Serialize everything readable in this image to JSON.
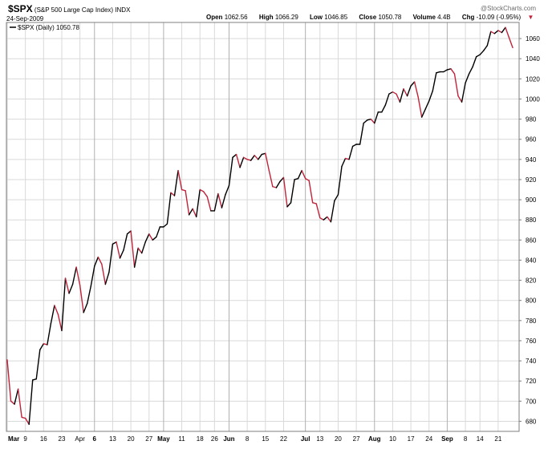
{
  "header": {
    "symbol": "$SPX",
    "name": "(S&P 500 Large Cap Index)",
    "exchange": "INDX",
    "date": "24-Sep-2009",
    "watermark": "@StockCharts.com",
    "quote": {
      "open_label": "Open",
      "open": "1062.56",
      "high_label": "High",
      "high": "1066.29",
      "low_label": "Low",
      "low": "1046.85",
      "close_label": "Close",
      "close": "1050.78",
      "volume_label": "Volume",
      "volume": "4.4B",
      "chg_label": "Chg",
      "chg": "-10.09 (-0.95%)",
      "chg_icon": "down-triangle-icon"
    }
  },
  "legend": {
    "text": "$SPX (Daily) 1050.78"
  },
  "colors": {
    "up": "#000000",
    "down": "#c0233a",
    "grid": "#d9d9d9",
    "month_line": "#b0b0b0"
  },
  "chart_data": {
    "type": "line",
    "series": [
      {
        "name": "$SPX (Daily) 1050.78",
        "values": [
          741,
          700,
          697,
          712,
          684,
          683,
          677,
          721,
          722,
          751,
          757,
          756,
          777,
          795,
          786,
          770,
          822,
          807,
          816,
          833,
          815,
          788,
          797,
          814,
          834,
          843,
          836,
          816,
          828,
          856,
          858,
          842,
          850,
          866,
          869,
          833,
          852,
          847,
          858,
          866,
          860,
          863,
          873,
          873,
          876,
          907,
          904,
          929,
          910,
          909,
          885,
          891,
          883,
          910,
          908,
          903,
          889,
          889,
          906,
          892,
          905,
          914,
          942,
          945,
          932,
          942,
          940,
          939,
          944,
          940,
          945,
          946,
          929,
          913,
          912,
          918,
          922,
          893,
          897,
          920,
          921,
          929,
          921,
          919,
          897,
          896,
          882,
          880,
          883,
          878,
          899,
          905,
          933,
          941,
          940,
          953,
          955,
          955,
          976,
          979,
          980,
          976,
          987,
          987,
          994,
          1005,
          1007,
          1005,
          997,
          1010,
          1003,
          1013,
          1017,
          1002,
          982,
          990,
          998,
          1008,
          1026,
          1027,
          1027,
          1029,
          1030,
          1025,
          1003,
          997,
          1016,
          1025,
          1032,
          1042,
          1044,
          1048,
          1053,
          1067,
          1065,
          1068,
          1066,
          1071,
          1061,
          1051
        ]
      }
    ],
    "x_tick_labels": [
      "Mar",
      "9",
      "16",
      "23",
      "Apr",
      "6",
      "13",
      "20",
      "27",
      "May",
      "11",
      "18",
      "26",
      "Jun",
      "8",
      "15",
      "22",
      "Jul",
      "13",
      "20",
      "27",
      "Aug",
      "10",
      "17",
      "24",
      "Sep",
      "8",
      "14",
      "21"
    ],
    "y_tick_labels": [
      "680",
      "700",
      "720",
      "740",
      "760",
      "780",
      "800",
      "820",
      "840",
      "860",
      "880",
      "900",
      "920",
      "940",
      "960",
      "980",
      "1000",
      "1020",
      "1040",
      "1060"
    ],
    "ylim": [
      670,
      1076
    ],
    "grid": true,
    "y_axis_side": "right",
    "legend_position": "top-left"
  }
}
